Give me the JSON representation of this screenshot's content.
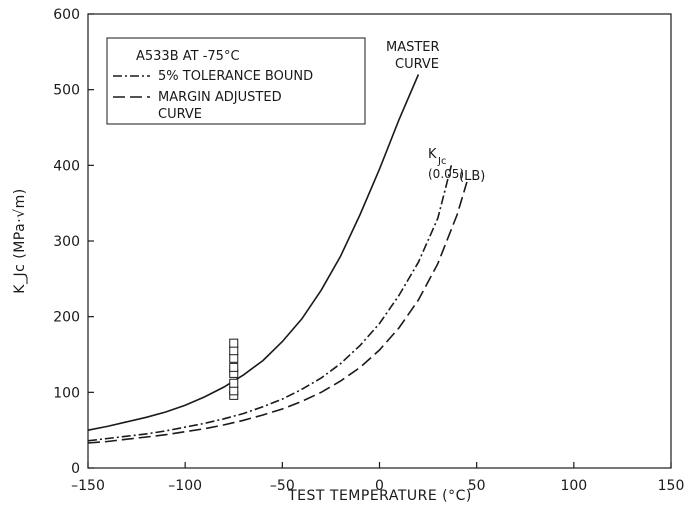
{
  "chart_data": {
    "type": "line",
    "xlabel": "TEST TEMPERATURE (°C)",
    "ylabel": "K_Jc (MPa·√m)",
    "xlim": [
      -150,
      150
    ],
    "ylim": [
      0,
      600
    ],
    "xticks": [
      -150,
      -100,
      -50,
      0,
      50,
      100,
      150
    ],
    "yticks": [
      0,
      100,
      200,
      300,
      400,
      500,
      600
    ],
    "grid": false,
    "legend": {
      "placement": "top-left",
      "title": "A533B AT -75°C",
      "entries": [
        {
          "label": "5% TOLERANCE BOUND",
          "style": "dash-dot"
        },
        {
          "label": "MARGIN ADJUSTED",
          "label2": "CURVE",
          "style": "long-dash"
        }
      ]
    },
    "annotations": {
      "master": [
        "MASTER",
        "CURVE"
      ],
      "kjc": "K",
      "kjc_sub": "Jc",
      "p005": "(0.05)",
      "lb": "(LB)"
    },
    "series": [
      {
        "name": "MASTER CURVE",
        "style": "solid",
        "x": [
          -150,
          -140,
          -130,
          -120,
          -110,
          -100,
          -90,
          -80,
          -70,
          -60,
          -50,
          -40,
          -30,
          -20,
          -10,
          0,
          10,
          20
        ],
        "y": [
          50,
          55,
          61,
          67,
          74,
          83,
          94,
          107,
          123,
          142,
          167,
          197,
          235,
          280,
          335,
          395,
          460,
          520
        ]
      },
      {
        "name": "5% TOLERANCE BOUND",
        "style": "dash-dot",
        "x": [
          -150,
          -140,
          -130,
          -120,
          -110,
          -100,
          -90,
          -80,
          -70,
          -60,
          -50,
          -40,
          -30,
          -20,
          -10,
          0,
          10,
          20,
          30,
          37
        ],
        "y": [
          36,
          39,
          42,
          45,
          49,
          54,
          59,
          65,
          72,
          81,
          91,
          104,
          119,
          138,
          162,
          191,
          228,
          272,
          330,
          400
        ]
      },
      {
        "name": "MARGIN ADJUSTED CURVE",
        "style": "long-dash",
        "x": [
          -150,
          -140,
          -130,
          -120,
          -110,
          -100,
          -90,
          -80,
          -70,
          -60,
          -50,
          -40,
          -30,
          -20,
          -10,
          0,
          10,
          20,
          30,
          40,
          45
        ],
        "y": [
          33,
          35,
          38,
          41,
          44,
          48,
          52,
          57,
          63,
          70,
          78,
          88,
          100,
          115,
          133,
          156,
          185,
          222,
          270,
          335,
          378
        ]
      },
      {
        "name": "data",
        "style": "square-markers",
        "x": [
          -75,
          -75,
          -75,
          -75,
          -75,
          -75,
          -75,
          -75
        ],
        "y": [
          96,
          102,
          112,
          125,
          133,
          145,
          155,
          165
        ]
      }
    ]
  }
}
